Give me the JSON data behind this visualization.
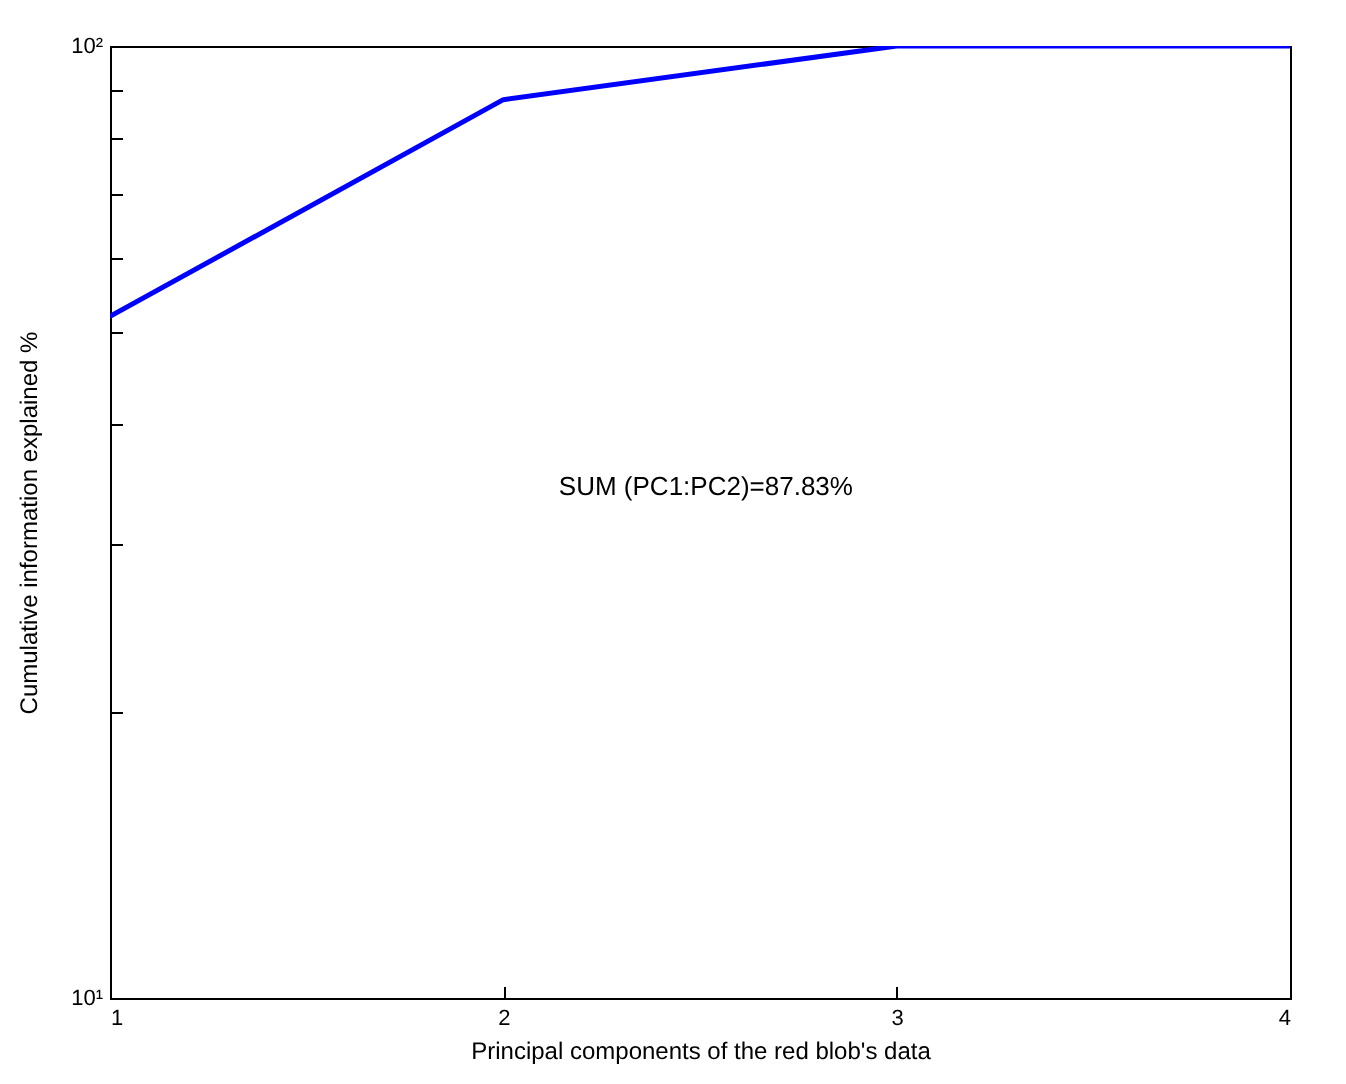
{
  "chart_data": {
    "type": "line",
    "xlabel": "Principal components of the red blob's data",
    "ylabel": "Cumulative information explained %",
    "x": [
      1,
      2,
      3,
      4
    ],
    "series": [
      {
        "color": "#0000ff",
        "values": [
          52,
          87.83,
          100,
          100
        ]
      }
    ],
    "xlim": [
      1,
      4
    ],
    "xticks": [
      1,
      2,
      3,
      4
    ],
    "ylim": [
      10,
      100
    ],
    "yticks": [
      {
        "value": 10,
        "label": "10¹"
      },
      {
        "value": 20,
        "label": null
      },
      {
        "value": 30,
        "label": null
      },
      {
        "value": 40,
        "label": null
      },
      {
        "value": 50,
        "label": null
      },
      {
        "value": 60,
        "label": null
      },
      {
        "value": 70,
        "label": null
      },
      {
        "value": 80,
        "label": null
      },
      {
        "value": 90,
        "label": null
      },
      {
        "value": 100,
        "label": "10²"
      }
    ],
    "log": "y",
    "grid": false,
    "legend": false,
    "marker": "none",
    "line_style": "solid",
    "annotations": [
      "SUM (PC1:PC2)=87.83%"
    ]
  }
}
